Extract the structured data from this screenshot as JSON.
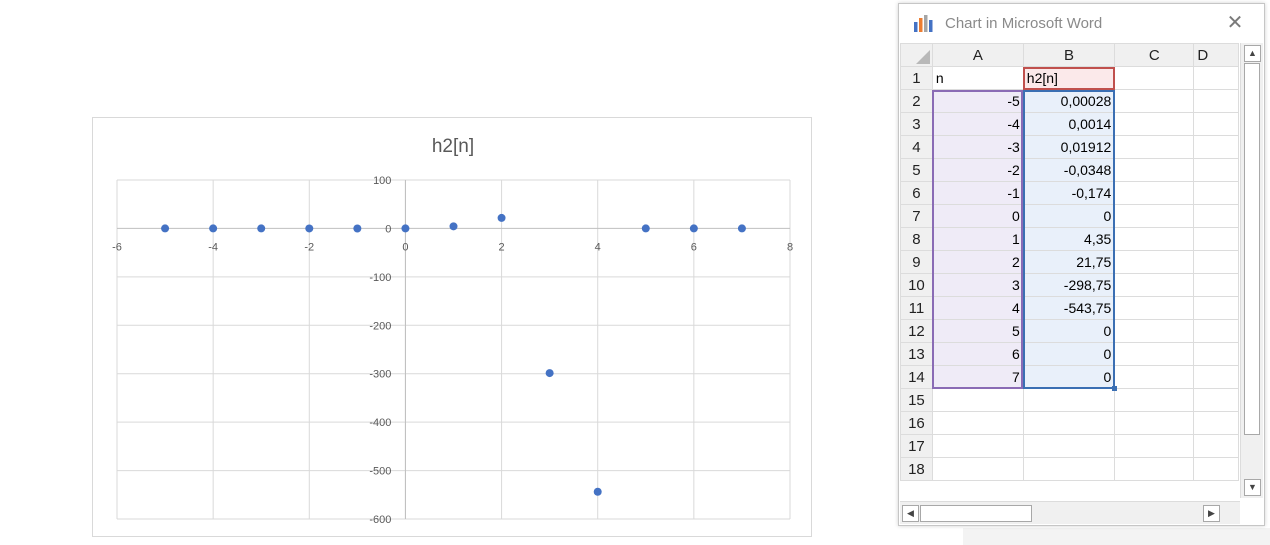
{
  "window": {
    "title": "Chart in Microsoft Word",
    "close_glyph": "✕",
    "icon": "chart-icon"
  },
  "sheet": {
    "columns": [
      "A",
      "B",
      "C",
      "D"
    ],
    "rows": [
      {
        "num": "1",
        "a": "n",
        "b": "h2[n]"
      },
      {
        "num": "2",
        "a": "-5",
        "b": "0,00028"
      },
      {
        "num": "3",
        "a": "-4",
        "b": "0,0014"
      },
      {
        "num": "4",
        "a": "-3",
        "b": "0,01912"
      },
      {
        "num": "5",
        "a": "-2",
        "b": "-0,0348"
      },
      {
        "num": "6",
        "a": "-1",
        "b": "-0,174"
      },
      {
        "num": "7",
        "a": "0",
        "b": "0"
      },
      {
        "num": "8",
        "a": "1",
        "b": "4,35"
      },
      {
        "num": "9",
        "a": "2",
        "b": "21,75"
      },
      {
        "num": "10",
        "a": "3",
        "b": "-298,75"
      },
      {
        "num": "11",
        "a": "4",
        "b": "-543,75"
      },
      {
        "num": "12",
        "a": "5",
        "b": "0"
      },
      {
        "num": "13",
        "a": "6",
        "b": "0"
      },
      {
        "num": "14",
        "a": "7",
        "b": "0"
      },
      {
        "num": "15",
        "a": "",
        "b": ""
      },
      {
        "num": "16",
        "a": "",
        "b": ""
      },
      {
        "num": "17",
        "a": "",
        "b": ""
      },
      {
        "num": "18",
        "a": "",
        "b": ""
      }
    ],
    "range_colors": {
      "series_x": "#8a6bb5",
      "series_y": "#3b6fb3",
      "series_name": "#c0504d"
    }
  },
  "chart_data": {
    "type": "scatter",
    "title": "h2[n]",
    "xlabel": "",
    "ylabel": "",
    "xlim": [
      -6,
      8
    ],
    "ylim": [
      -600,
      100
    ],
    "x_ticks": [
      -6,
      -4,
      -2,
      0,
      2,
      4,
      6,
      8
    ],
    "y_ticks": [
      100,
      0,
      -100,
      -200,
      -300,
      -400,
      -500,
      -600
    ],
    "grid": true,
    "marker_color": "#4472c4",
    "series": [
      {
        "x": [
          -5,
          -4,
          -3,
          -2,
          -1,
          0,
          1,
          2,
          3,
          4,
          5,
          6,
          7
        ],
        "y": [
          0.00028,
          0.0014,
          0.01912,
          -0.0348,
          -0.174,
          0,
          4.35,
          21.75,
          -298.75,
          -543.75,
          0,
          0,
          0
        ]
      }
    ]
  }
}
